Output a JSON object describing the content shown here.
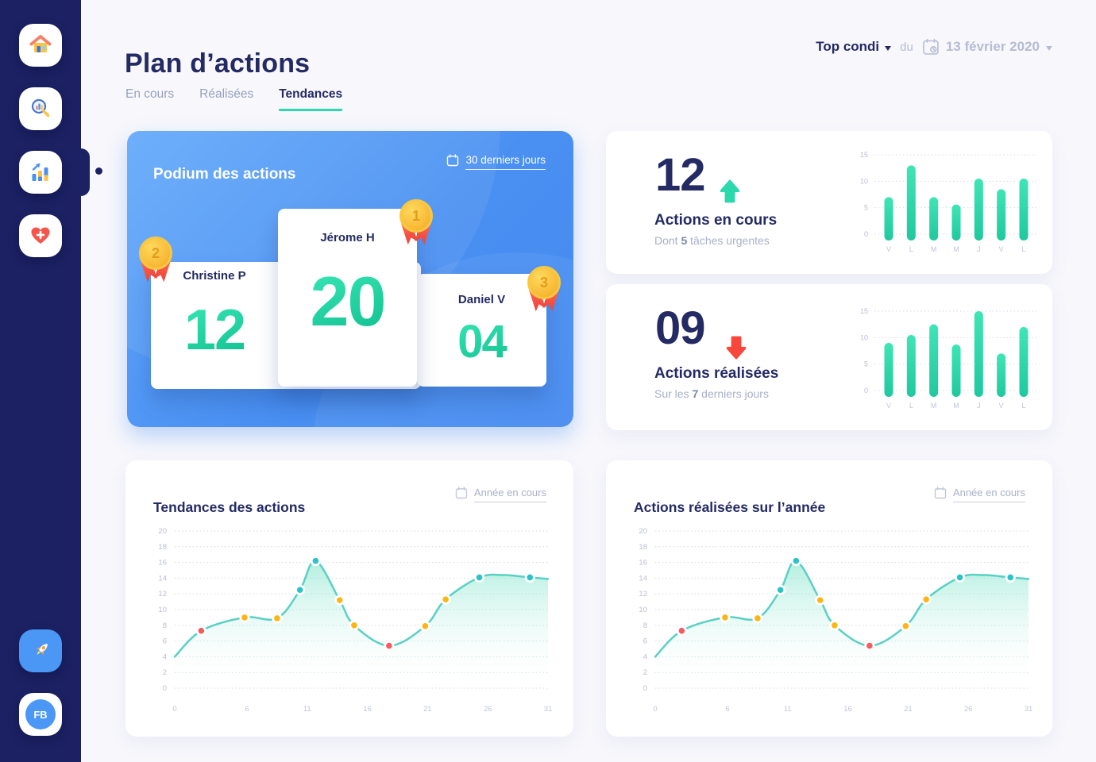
{
  "sidebar": {
    "avatar_initials": "FB",
    "items": [
      {
        "id": "home"
      },
      {
        "id": "search"
      },
      {
        "id": "stats",
        "active": true
      },
      {
        "id": "health"
      },
      {
        "id": "rocket"
      }
    ]
  },
  "header": {
    "title": "Plan d’actions",
    "tabs": [
      {
        "label": "En cours",
        "active": false
      },
      {
        "label": "Réalisées",
        "active": false
      },
      {
        "label": "Tendances",
        "active": true
      }
    ],
    "filter_label": "Top condi",
    "preposition": "du",
    "date": "13 février 2020"
  },
  "podium": {
    "title": "Podium des actions",
    "period": "30 derniers jours",
    "entries": [
      {
        "rank": "2",
        "name": "Christine P",
        "score": "12"
      },
      {
        "rank": "1",
        "name": "Jérome H",
        "score": "20"
      },
      {
        "rank": "3",
        "name": "Daniel V",
        "score": "04"
      }
    ]
  },
  "stats": {
    "en_cours": {
      "value": "12",
      "trend": "up",
      "title": "Actions en cours",
      "sub_prefix": "Dont ",
      "sub_bold": "5",
      "sub_suffix": " tâches urgentes"
    },
    "realisees": {
      "value": "09",
      "trend": "down",
      "title": "Actions réalisées",
      "sub_prefix": "Sur les ",
      "sub_bold": "7",
      "sub_suffix": " derniers jours"
    }
  },
  "trends": {
    "left": {
      "title": "Tendances des actions",
      "period": "Année en cours"
    },
    "right": {
      "title": "Actions réalisées sur l’année",
      "period": "Année en cours"
    }
  },
  "colors": {
    "navy": "#242a63",
    "sidebar": "#1b2162",
    "blue": "#4a90f2",
    "teal_accent": "#2bd9ad",
    "red": "#f75b60",
    "yellow": "#fdb515",
    "cyan": "#2bc2c9"
  },
  "chart_data": [
    {
      "type": "bar",
      "title": "Actions en cours - 7 derniers jours",
      "categories": [
        "V",
        "L",
        "M",
        "M",
        "J",
        "V",
        "L"
      ],
      "values": [
        7,
        13,
        7,
        5.6,
        10.5,
        8.5,
        10.5
      ],
      "yticks": [
        0,
        5,
        10,
        15
      ],
      "ylim": [
        0,
        15
      ],
      "xlabel": "",
      "ylabel": "",
      "grid": "dotted",
      "bar_gradient": [
        "#40e5b6",
        "#1fc89e"
      ]
    },
    {
      "type": "bar",
      "title": "Actions réalisées - 7 derniers jours",
      "categories": [
        "V",
        "L",
        "M",
        "M",
        "J",
        "V",
        "L"
      ],
      "values": [
        9,
        10.5,
        12.5,
        8.7,
        15,
        7,
        12
      ],
      "yticks": [
        0,
        5,
        10,
        15
      ],
      "ylim": [
        0,
        15
      ],
      "xlabel": "",
      "ylabel": "",
      "grid": "dotted",
      "bar_gradient": [
        "#40e5b6",
        "#1fc89e"
      ]
    },
    {
      "type": "line",
      "title": "Tendances des actions",
      "xlim": [
        0,
        31
      ],
      "ylim": [
        0,
        20
      ],
      "xticks": [
        0,
        6,
        11,
        16,
        21,
        26,
        31
      ],
      "yticks": [
        0,
        2,
        4,
        6,
        8,
        10,
        12,
        14,
        16,
        18,
        20
      ],
      "grid": "dotted",
      "legend": "none",
      "line_color": "#5ad0c5",
      "area_top": "rgba(116,225,197,0.55)",
      "area_bottom": "rgba(255,255,255,0)",
      "dot_colors": {
        "red": "#f75b60",
        "yellow": "#fdb515",
        "teal": "#2bc2c9"
      },
      "points": [
        {
          "x": 0,
          "y": 4
        },
        {
          "x": 2.2,
          "y": 7.3,
          "dot": "red"
        },
        {
          "x": 5.8,
          "y": 9.0,
          "dot": "yellow"
        },
        {
          "x": 8.5,
          "y": 8.9,
          "dot": "yellow"
        },
        {
          "x": 10.4,
          "y": 12.5,
          "dot": "teal"
        },
        {
          "x": 11.7,
          "y": 16.2,
          "dot": "teal"
        },
        {
          "x": 13.7,
          "y": 11.2,
          "dot": "yellow"
        },
        {
          "x": 14.9,
          "y": 8.0,
          "dot": "yellow"
        },
        {
          "x": 17.8,
          "y": 5.4,
          "dot": "red"
        },
        {
          "x": 20.8,
          "y": 7.9,
          "dot": "yellow"
        },
        {
          "x": 22.5,
          "y": 11.3,
          "dot": "yellow"
        },
        {
          "x": 25.3,
          "y": 14.1,
          "dot": "teal"
        },
        {
          "x": 27.3,
          "y": 14.4
        },
        {
          "x": 29.5,
          "y": 14.1,
          "dot": "teal"
        },
        {
          "x": 31,
          "y": 13.9
        }
      ]
    },
    {
      "type": "line",
      "title": "Actions réalisées sur l’année",
      "xlim": [
        0,
        31
      ],
      "ylim": [
        0,
        20
      ],
      "xticks": [
        0,
        6,
        11,
        16,
        21,
        26,
        31
      ],
      "yticks": [
        0,
        2,
        4,
        6,
        8,
        10,
        12,
        14,
        16,
        18,
        20
      ],
      "grid": "dotted",
      "legend": "none",
      "line_color": "#5ad0c5",
      "area_top": "rgba(116,225,197,0.55)",
      "area_bottom": "rgba(255,255,255,0)",
      "dot_colors": {
        "red": "#f75b60",
        "yellow": "#fdb515",
        "teal": "#2bc2c9"
      },
      "points": [
        {
          "x": 0,
          "y": 4
        },
        {
          "x": 2.2,
          "y": 7.3,
          "dot": "red"
        },
        {
          "x": 5.8,
          "y": 9.0,
          "dot": "yellow"
        },
        {
          "x": 8.5,
          "y": 8.9,
          "dot": "yellow"
        },
        {
          "x": 10.4,
          "y": 12.5,
          "dot": "teal"
        },
        {
          "x": 11.7,
          "y": 16.2,
          "dot": "teal"
        },
        {
          "x": 13.7,
          "y": 11.2,
          "dot": "yellow"
        },
        {
          "x": 14.9,
          "y": 8.0,
          "dot": "yellow"
        },
        {
          "x": 17.8,
          "y": 5.4,
          "dot": "red"
        },
        {
          "x": 20.8,
          "y": 7.9,
          "dot": "yellow"
        },
        {
          "x": 22.5,
          "y": 11.3,
          "dot": "yellow"
        },
        {
          "x": 25.3,
          "y": 14.1,
          "dot": "teal"
        },
        {
          "x": 27.3,
          "y": 14.4
        },
        {
          "x": 29.5,
          "y": 14.1,
          "dot": "teal"
        },
        {
          "x": 31,
          "y": 13.9
        }
      ]
    }
  ]
}
